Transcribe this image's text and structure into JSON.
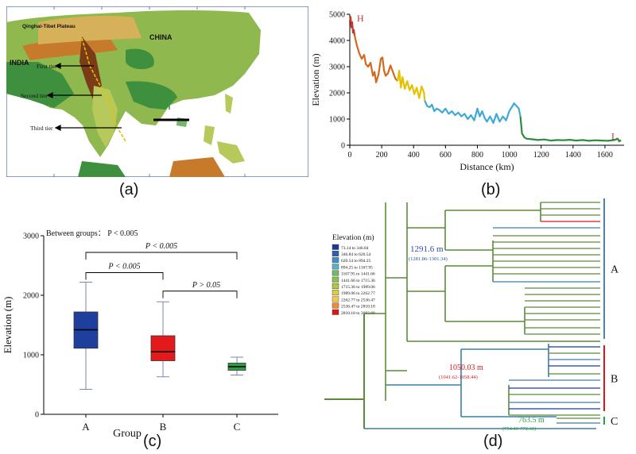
{
  "panel_labels": {
    "a": "(a)",
    "b": "(b)",
    "c": "(c)",
    "d": "(d)"
  },
  "map": {
    "place_labels": {
      "plateau": "Qinghai-Tibet Plateau",
      "china": "CHINA",
      "india": "INDIA"
    },
    "tier_labels": [
      "First tier",
      "Second tier",
      "Third tier"
    ],
    "colors": {
      "sea": "#ffffff",
      "lowland": "#3e8f3e",
      "hills": "#b7c95a",
      "highland": "#c77a2a",
      "peak": "#7a3b16",
      "border": "#5c7fbf"
    }
  },
  "profile_chart": {
    "chart_data": {
      "type": "line",
      "xlabel": "Distance (km)",
      "ylabel": "Elevation (m)",
      "xlim": [
        0,
        1720
      ],
      "ylim": [
        0,
        5000
      ],
      "x_ticks": [
        0,
        200,
        400,
        600,
        800,
        1000,
        1200,
        1400,
        1600
      ],
      "y_ticks": [
        0,
        1000,
        2000,
        3000,
        4000,
        5000
      ],
      "annotations": [
        {
          "text": "H",
          "x": 15,
          "y": 4850
        },
        {
          "text": "L",
          "x": 1690,
          "y": 350
        }
      ],
      "series": [
        {
          "color": "#c0392b",
          "x": [
            0,
            5,
            10,
            15,
            20,
            25,
            30
          ],
          "y": [
            4700,
            4900,
            4500,
            4700,
            4300,
            4400,
            4200
          ]
        },
        {
          "color": "#d2691e",
          "x": [
            30,
            45,
            60,
            75,
            90,
            100,
            115,
            130,
            145,
            155,
            165,
            180,
            195,
            205,
            215,
            225,
            240,
            255,
            270,
            285,
            300
          ],
          "y": [
            4200,
            3800,
            3500,
            3300,
            3450,
            3100,
            3000,
            3150,
            2650,
            2800,
            2400,
            2700,
            3300,
            3350,
            2850,
            2650,
            2750,
            3050,
            2800,
            2550,
            2450
          ]
        },
        {
          "color": "#e5c100",
          "x": [
            300,
            310,
            320,
            330,
            345,
            360,
            375,
            390,
            405,
            420,
            435,
            450,
            465,
            470
          ],
          "y": [
            2450,
            2850,
            2200,
            2600,
            2150,
            2450,
            2100,
            2300,
            1950,
            2200,
            1800,
            2250,
            2000,
            1700
          ]
        },
        {
          "color": "#3ea9d9",
          "x": [
            470,
            485,
            500,
            515,
            530,
            545,
            560,
            580,
            600,
            620,
            640,
            660,
            680,
            700,
            720,
            740,
            760,
            780,
            800,
            815,
            830,
            845,
            860,
            880,
            900,
            920,
            940,
            960,
            980,
            1000,
            1015,
            1030,
            1045,
            1060,
            1070
          ],
          "y": [
            1700,
            1500,
            1450,
            1550,
            1300,
            1400,
            1350,
            1250,
            1400,
            1200,
            1300,
            1150,
            1250,
            1100,
            1200,
            1000,
            1150,
            950,
            1400,
            1100,
            1300,
            1050,
            900,
            1100,
            850,
            1200,
            900,
            1100,
            950,
            1300,
            1450,
            1600,
            1500,
            1400,
            1100
          ]
        },
        {
          "color": "#2e8b3d",
          "x": [
            1070,
            1080,
            1095,
            1110,
            1140,
            1180,
            1220,
            1260,
            1300,
            1340,
            1380,
            1420,
            1460,
            1500,
            1540,
            1580,
            1620,
            1660,
            1680,
            1690,
            1700
          ],
          "y": [
            1100,
            450,
            300,
            250,
            230,
            200,
            220,
            180,
            200,
            190,
            210,
            180,
            200,
            170,
            190,
            180,
            170,
            200,
            250,
            150,
            200
          ]
        }
      ]
    }
  },
  "box_chart": {
    "chart_data": {
      "type": "box",
      "title": "Between groups： P < 0.005",
      "xlabel": "Group",
      "ylabel": "Elevation (m)",
      "ylim": [
        0,
        3000
      ],
      "y_ticks": [
        0,
        1000,
        2000,
        3000
      ],
      "categories": [
        "A",
        "B",
        "C"
      ],
      "boxes": [
        {
          "group": "A",
          "whisker_low": 420,
          "q1": 1110,
          "median": 1420,
          "q3": 1720,
          "whisker_high": 2220,
          "color": "#1f3f9e"
        },
        {
          "group": "B",
          "whisker_low": 630,
          "q1": 900,
          "median": 1050,
          "q3": 1320,
          "whisker_high": 1890,
          "color": "#e31a1c"
        },
        {
          "group": "C",
          "whisker_low": 660,
          "q1": 740,
          "median": 800,
          "q3": 860,
          "whisker_high": 960,
          "color": "#2e9b45"
        }
      ],
      "comparisons": [
        {
          "from": "A",
          "to": "C",
          "label": "P < 0.005",
          "y": 2720
        },
        {
          "from": "A",
          "to": "B",
          "label": "P < 0.005",
          "y": 2380
        },
        {
          "from": "B",
          "to": "C",
          "label": "P > 0.05",
          "y": 2070
        }
      ]
    }
  },
  "tree": {
    "legend_title": "Elevation (m)",
    "legend_items": [
      {
        "label": "73.14 to 346.84",
        "color": "#1f3a93"
      },
      {
        "label": "346.84 to 620.54",
        "color": "#3060b0"
      },
      {
        "label": "620.54 to 894.25",
        "color": "#3f8fc9"
      },
      {
        "label": "894.25 to 1167.95",
        "color": "#58b3c6"
      },
      {
        "label": "1167.95 to 1441.66",
        "color": "#74b96b"
      },
      {
        "label": "1441.66 to 1715.36",
        "color": "#8fbf4f"
      },
      {
        "label": "1715.36 to 1989.06",
        "color": "#b3c63f"
      },
      {
        "label": "1989.06 to 2262.77",
        "color": "#d8cf46"
      },
      {
        "label": "2262.77 to 2536.47",
        "color": "#f2c94c"
      },
      {
        "label": "2536.47 to 2810.18",
        "color": "#ef8a3a"
      },
      {
        "label": "2810.18 to 3083.88",
        "color": "#d7191c"
      }
    ],
    "node_annotations": [
      {
        "value": "1291.6 m",
        "range": "(1281.86-1301.34)",
        "color": "#2b4fa3"
      },
      {
        "value": "1050.03 m",
        "range": "(1041.62-1058.44)",
        "color": "#d7191c"
      },
      {
        "value": "763.5 m",
        "range": "(754.40-772.60)",
        "color": "#2e9b45"
      }
    ],
    "clades": [
      {
        "label": "A",
        "color": "#4a7fc1"
      },
      {
        "label": "B",
        "color": "#d7191c"
      },
      {
        "label": "C",
        "color": "#2e9b45"
      }
    ],
    "branch_color": "#5a8a3a",
    "branch_color_low": "#3d7ea6"
  }
}
